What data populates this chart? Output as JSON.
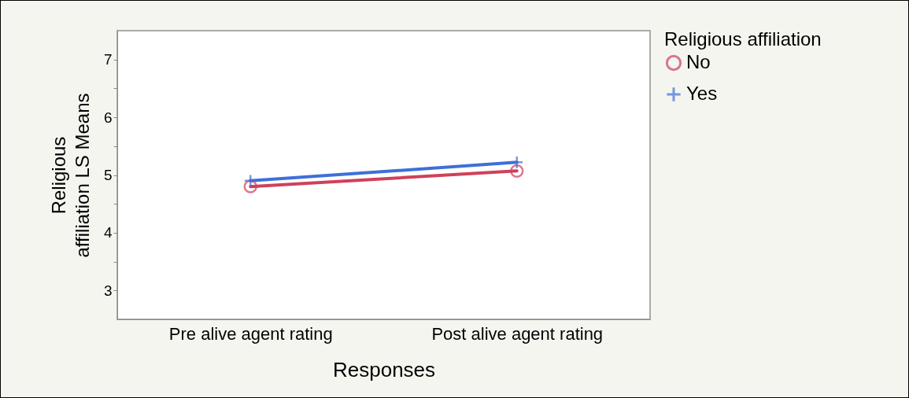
{
  "chart_data": {
    "type": "line",
    "xlabel": "Responses",
    "ylabel": "Religious\naffiliation  LS Means",
    "legend_title": "Religious affiliation",
    "categories": [
      "Pre alive agent rating",
      "Post alive agent rating"
    ],
    "series": [
      {
        "name": "No",
        "color": "#d0405a",
        "marker": "circle",
        "values": [
          4.8,
          5.07
        ]
      },
      {
        "name": "Yes",
        "color": "#3f6fd8",
        "marker": "cross",
        "values": [
          4.9,
          5.22
        ]
      }
    ],
    "ylim": [
      2.5,
      7.5
    ],
    "yticks": [
      3,
      {
        "value": 3.5,
        "label": null
      },
      4,
      {
        "value": 4.5,
        "label": null
      },
      5,
      {
        "value": 5.5,
        "label": null
      },
      6,
      {
        "value": 6.5,
        "label": null
      },
      7
    ],
    "legend": "top right",
    "grid": false,
    "line_style": "solid"
  }
}
